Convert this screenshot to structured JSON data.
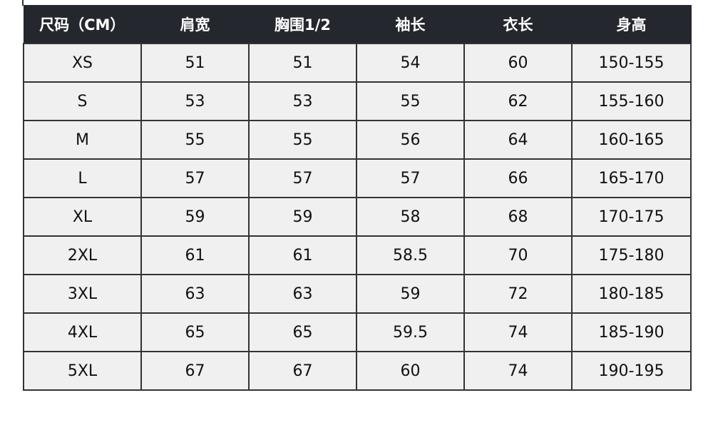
{
  "table": {
    "headers": [
      "尺码（CM）",
      "肩宽",
      "胸围1/2",
      "袖长",
      "衣长",
      "身高"
    ],
    "rows": [
      [
        "XS",
        "51",
        "51",
        "54",
        "60",
        "150-155"
      ],
      [
        "S",
        "53",
        "53",
        "55",
        "62",
        "155-160"
      ],
      [
        "M",
        "55",
        "55",
        "56",
        "64",
        "160-165"
      ],
      [
        "L",
        "57",
        "57",
        "57",
        "66",
        "165-170"
      ],
      [
        "XL",
        "59",
        "59",
        "58",
        "68",
        "170-175"
      ],
      [
        "2XL",
        "61",
        "61",
        "58.5",
        "70",
        "175-180"
      ],
      [
        "3XL",
        "63",
        "63",
        "59",
        "72",
        "180-185"
      ],
      [
        "4XL",
        "65",
        "65",
        "59.5",
        "74",
        "185-190"
      ],
      [
        "5XL",
        "67",
        "67",
        "60",
        "74",
        "190-195"
      ]
    ]
  },
  "colors": {
    "header_bg": "#24272d",
    "cell_bg": "#f0f0f0"
  }
}
